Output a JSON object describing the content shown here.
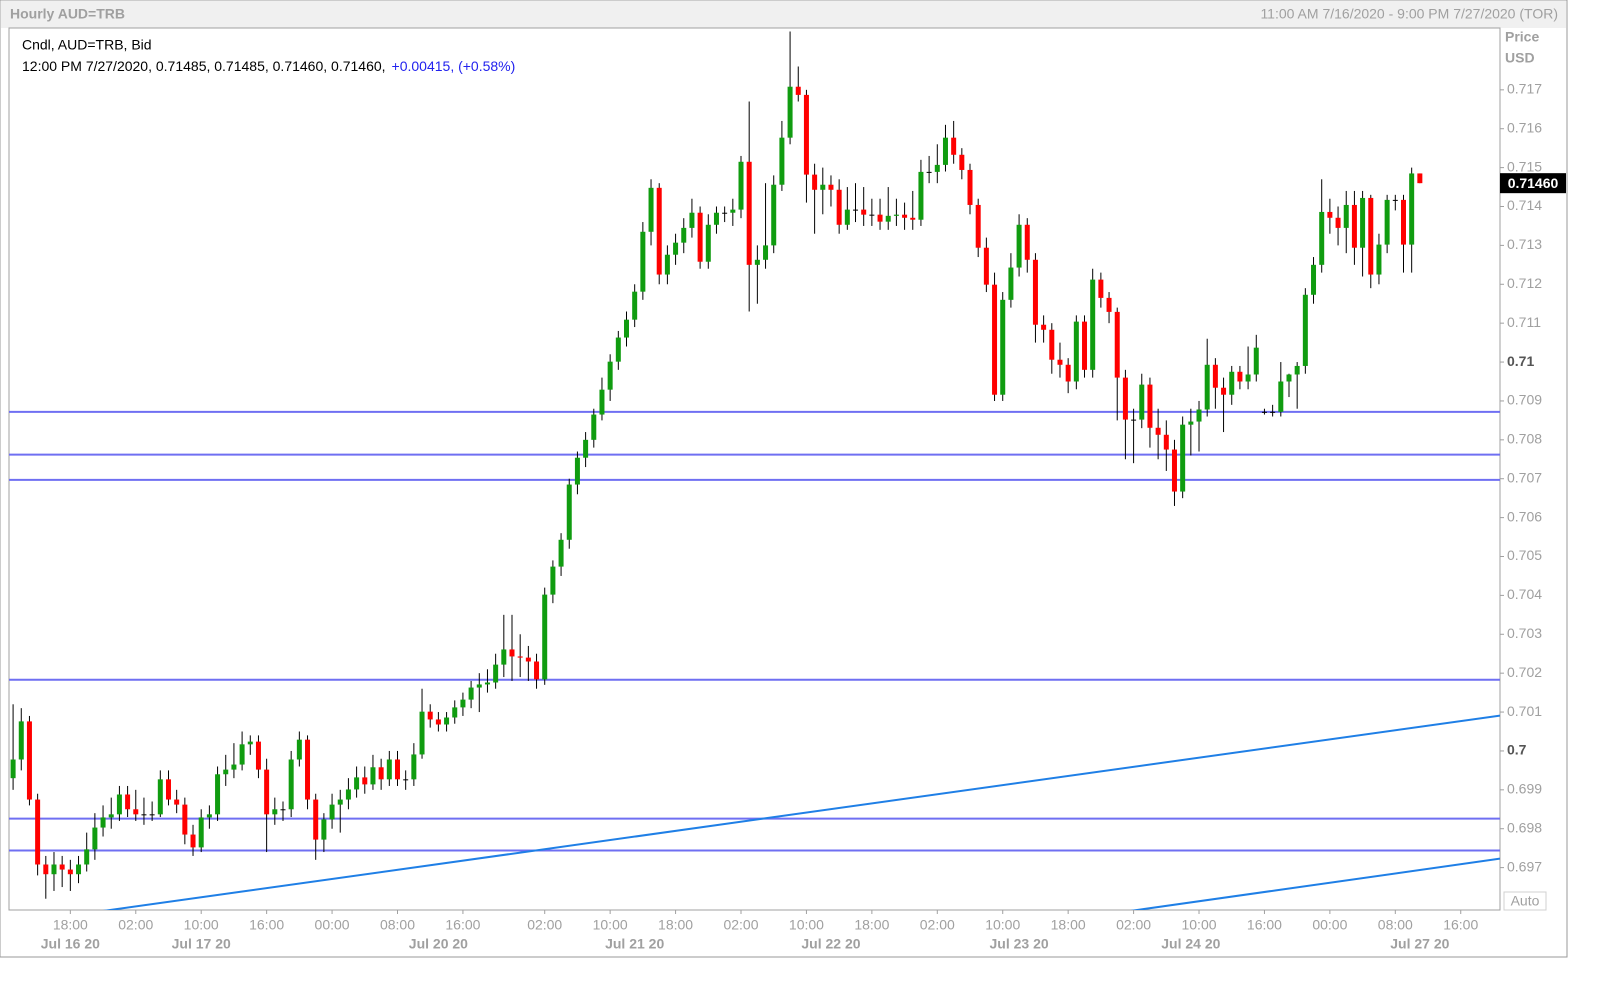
{
  "chart_data": {
    "type": "candlestick",
    "title": "Hourly AUD=TRB",
    "range_text": "11:00 AM 7/16/2020 - 9:00 PM 7/27/2020 (TOR)",
    "legend_text": "Cndl, AUD=TRB, Bid",
    "info_text": "12:00 PM 7/27/2020, 0.71485, 0.71485, 0.71460, 0.71460,",
    "change_text": "+0.00415, (+0.58%)",
    "axis_label": "Price",
    "axis_unit": "USD",
    "auto_label": "Auto",
    "last_price": 0.7146,
    "last_price_label": "0.71460",
    "up_color": "#109c10",
    "down_color": "#ff0000",
    "hline_color": "#6f6ff2",
    "trend_color": "#1f7fe6",
    "xlim": [
      -0.5,
      181.8
    ],
    "ylim": [
      0.69591,
      0.71859
    ],
    "yticks": [
      0.697,
      0.698,
      0.699,
      0.7,
      0.701,
      0.702,
      0.703,
      0.704,
      0.705,
      0.706,
      0.707,
      0.708,
      0.709,
      0.71,
      0.711,
      0.712,
      0.713,
      0.714,
      0.715,
      0.716,
      0.717
    ],
    "xticks": [
      {
        "value": 7,
        "label": "18:00"
      },
      {
        "value": 15,
        "label": "02:00"
      },
      {
        "value": 23,
        "label": "10:00"
      },
      {
        "value": 31,
        "label": "16:00"
      },
      {
        "value": 39,
        "label": "00:00"
      },
      {
        "value": 47,
        "label": "08:00"
      },
      {
        "value": 55,
        "label": "16:00"
      },
      {
        "value": 65,
        "label": "02:00"
      },
      {
        "value": 73,
        "label": "10:00"
      },
      {
        "value": 81,
        "label": "18:00"
      },
      {
        "value": 89,
        "label": "02:00"
      },
      {
        "value": 97,
        "label": "10:00"
      },
      {
        "value": 105,
        "label": "18:00"
      },
      {
        "value": 113,
        "label": "02:00"
      },
      {
        "value": 121,
        "label": "10:00"
      },
      {
        "value": 129,
        "label": "18:00"
      },
      {
        "value": 137,
        "label": "02:00"
      },
      {
        "value": 145,
        "label": "10:00"
      },
      {
        "value": 153,
        "label": "16:00"
      },
      {
        "value": 161,
        "label": "00:00"
      },
      {
        "value": 169,
        "label": "08:00"
      },
      {
        "value": 177,
        "label": "16:00"
      }
    ],
    "date_ticks": [
      {
        "value": 7,
        "label": "Jul 16 20"
      },
      {
        "value": 23,
        "label": "Jul 17 20"
      },
      {
        "value": 52,
        "label": "Jul 20 20"
      },
      {
        "value": 76,
        "label": "Jul 21 20"
      },
      {
        "value": 100,
        "label": "Jul 22 20"
      },
      {
        "value": 123,
        "label": "Jul 23 20"
      },
      {
        "value": 144,
        "label": "Jul 24 20"
      },
      {
        "value": 172,
        "label": "Jul 27 20"
      }
    ],
    "hlines": [
      0.70872,
      0.70762,
      0.70697,
      0.70183,
      0.69826,
      0.69744
    ],
    "trendlines": [
      {
        "x": [
          10.5,
          181.8
        ],
        "y": [
          0.69587,
          0.70091
        ]
      },
      {
        "x": [
          136.1,
          181.8
        ],
        "y": [
          0.69587,
          0.69723
        ]
      }
    ],
    "open": [
      0.6993,
      0.69978,
      0.70076,
      0.69875,
      0.69708,
      0.69683,
      0.69708,
      0.69695,
      0.69683,
      0.69708,
      0.69747,
      0.69803,
      0.69829,
      0.69837,
      0.69888,
      0.6985,
      0.69837,
      0.69837,
      0.69837,
      0.69927,
      0.69875,
      0.69862,
      0.69785,
      0.69752,
      0.69829,
      0.69837,
      0.6994,
      0.69952,
      0.69965,
      0.70017,
      0.70024,
      0.69952,
      0.69837,
      0.6985,
      0.6985,
      0.69978,
      0.70029,
      0.69875,
      0.69772,
      0.69824,
      0.69862,
      0.69875,
      0.69901,
      0.69932,
      0.69914,
      0.69958,
      0.69927,
      0.69978,
      0.69927,
      0.69927,
      0.69991,
      0.70101,
      0.70081,
      0.70068,
      0.70086,
      0.70112,
      0.70132,
      0.70163,
      0.70171,
      0.70176,
      0.70222,
      0.70261,
      0.70243,
      0.7024,
      0.7023,
      0.70184,
      0.70402,
      0.70474,
      0.70543,
      0.70685,
      0.70754,
      0.708,
      0.70865,
      0.70929,
      0.71001,
      0.71063,
      0.71109,
      0.71181,
      0.71335,
      0.71448,
      0.71225,
      0.71276,
      0.71307,
      0.71345,
      0.71384,
      0.71258,
      0.71353,
      0.71384,
      0.71384,
      0.71392,
      0.71515,
      0.7125,
      0.71263,
      0.713,
      0.71456,
      0.71577,
      0.71708,
      0.71687,
      0.71482,
      0.71443,
      0.71456,
      0.71443,
      0.71353,
      0.71392,
      0.71392,
      0.71379,
      0.71379,
      0.71361,
      0.71376,
      0.71379,
      0.71371,
      0.71366,
      0.71489,
      0.71489,
      0.71507,
      0.71577,
      0.71533,
      0.71494,
      0.71404,
      0.71294,
      0.71199,
      0.70916,
      0.7116,
      0.71243,
      0.71353,
      0.71263,
      0.71096,
      0.71083,
      0.71006,
      0.70993,
      0.7095,
      0.71104,
      0.7098,
      0.71212,
      0.71165,
      0.71129,
      0.7096,
      0.70852,
      0.70852,
      0.70942,
      0.70831,
      0.70813,
      0.70775,
      0.70667,
      0.70839,
      0.70847,
      0.70878,
      0.70993,
      0.70934,
      0.70916,
      0.70975,
      0.7095,
      0.70968,
      0.70872,
      0.70872,
      0.70872,
      0.7095,
      0.70968,
      0.7099,
      0.71173,
      0.7125,
      0.71386,
      0.71371,
      0.71345,
      0.71404,
      0.71294,
      0.71422,
      0.71225,
      0.71302,
      0.71417,
      0.71417,
      0.71302,
      0.71485
    ],
    "high": [
      0.7012,
      0.7011,
      0.7009,
      0.6989,
      0.6973,
      0.6974,
      0.6973,
      0.6972,
      0.6973,
      0.6979,
      0.6984,
      0.6986,
      0.6988,
      0.6991,
      0.6991,
      0.699,
      0.6988,
      0.6987,
      0.6995,
      0.6995,
      0.699,
      0.6988,
      0.6981,
      0.6985,
      0.6986,
      0.6996,
      0.6999,
      0.7002,
      0.7005,
      0.7004,
      0.7004,
      0.6998,
      0.6988,
      0.6987,
      0.7,
      0.7005,
      0.7004,
      0.6989,
      0.6984,
      0.6989,
      0.699,
      0.6993,
      0.6996,
      0.6996,
      0.6999,
      0.6998,
      0.7,
      0.7,
      0.6995,
      0.7002,
      0.7016,
      0.7012,
      0.701,
      0.701,
      0.7013,
      0.7015,
      0.7018,
      0.702,
      0.7021,
      0.7025,
      0.7035,
      0.7035,
      0.703,
      0.7027,
      0.7025,
      0.7042,
      0.7049,
      0.7056,
      0.707,
      0.7077,
      0.7082,
      0.7088,
      0.7096,
      0.7102,
      0.7108,
      0.7113,
      0.712,
      0.7136,
      0.7147,
      0.7146,
      0.713,
      0.7133,
      0.7137,
      0.7142,
      0.714,
      0.7138,
      0.714,
      0.714,
      0.7142,
      0.7153,
      0.7167,
      0.713,
      0.7146,
      0.7148,
      0.7162,
      0.7185,
      0.7176,
      0.717,
      0.7151,
      0.715,
      0.7148,
      0.7147,
      0.7145,
      0.7146,
      0.7145,
      0.7142,
      0.7142,
      0.7145,
      0.7142,
      0.7141,
      0.7144,
      0.7152,
      0.7153,
      0.7156,
      0.7161,
      0.7162,
      0.7155,
      0.7151,
      0.7142,
      0.7132,
      0.7123,
      0.7118,
      0.7128,
      0.7138,
      0.7137,
      0.7128,
      0.7112,
      0.711,
      0.7105,
      0.7101,
      0.7112,
      0.7112,
      0.7124,
      0.7123,
      0.7118,
      0.7114,
      0.7098,
      0.7088,
      0.7097,
      0.7096,
      0.7088,
      0.7085,
      0.708,
      0.7086,
      0.7088,
      0.709,
      0.7106,
      0.7101,
      0.7096,
      0.7099,
      0.7099,
      0.7104,
      0.7107,
      0.7088,
      0.7089,
      0.71,
      0.7097,
      0.71,
      0.7119,
      0.7127,
      0.7147,
      0.7142,
      0.714,
      0.7144,
      0.7144,
      0.7144,
      0.7143,
      0.7133,
      0.7143,
      0.7143,
      0.7143,
      0.715,
      0.71485
    ],
    "low": [
      0.699,
      0.6995,
      0.6986,
      0.6968,
      0.6962,
      0.6964,
      0.6965,
      0.6964,
      0.6966,
      0.6969,
      0.6972,
      0.6978,
      0.698,
      0.6982,
      0.6983,
      0.6982,
      0.6981,
      0.6982,
      0.6983,
      0.6986,
      0.6984,
      0.6976,
      0.6973,
      0.6974,
      0.698,
      0.6982,
      0.6991,
      0.6993,
      0.6995,
      0.6999,
      0.6993,
      0.6974,
      0.6981,
      0.6982,
      0.6983,
      0.6996,
      0.6985,
      0.6972,
      0.6974,
      0.698,
      0.6979,
      0.6985,
      0.6988,
      0.6989,
      0.699,
      0.699,
      0.6991,
      0.6991,
      0.699,
      0.6991,
      0.6998,
      0.7006,
      0.7005,
      0.7005,
      0.7007,
      0.7009,
      0.7011,
      0.701,
      0.7015,
      0.7016,
      0.7019,
      0.7018,
      0.7019,
      0.7018,
      0.7016,
      0.7017,
      0.7038,
      0.7045,
      0.7052,
      0.7066,
      0.7073,
      0.7078,
      0.7085,
      0.709,
      0.7098,
      0.7104,
      0.7109,
      0.7116,
      0.713,
      0.712,
      0.712,
      0.7125,
      0.7128,
      0.7132,
      0.7124,
      0.7124,
      0.7133,
      0.7136,
      0.7135,
      0.7137,
      0.7113,
      0.7115,
      0.7124,
      0.7128,
      0.7144,
      0.7156,
      0.7167,
      0.7141,
      0.7133,
      0.7138,
      0.714,
      0.7133,
      0.7134,
      0.7136,
      0.7135,
      0.7135,
      0.7134,
      0.7134,
      0.7135,
      0.7134,
      0.7134,
      0.7135,
      0.7146,
      0.7146,
      0.7149,
      0.7151,
      0.7147,
      0.7138,
      0.7127,
      0.7118,
      0.709,
      0.709,
      0.7114,
      0.7122,
      0.7123,
      0.7105,
      0.7105,
      0.7097,
      0.7096,
      0.7092,
      0.7093,
      0.7096,
      0.7096,
      0.7114,
      0.711,
      0.7085,
      0.7075,
      0.7074,
      0.7083,
      0.7078,
      0.7075,
      0.7072,
      0.7063,
      0.7065,
      0.7076,
      0.7077,
      0.7086,
      0.7088,
      0.7082,
      0.7089,
      0.7093,
      0.7093,
      0.7095,
      0.70865,
      0.7086,
      0.7086,
      0.7091,
      0.7088,
      0.7097,
      0.7115,
      0.7123,
      0.7133,
      0.713,
      0.7128,
      0.7125,
      0.7122,
      0.7119,
      0.712,
      0.7128,
      0.7139,
      0.7123,
      0.7123,
      0.7146
    ],
    "close": [
      0.69978,
      0.70076,
      0.69875,
      0.69708,
      0.69683,
      0.69708,
      0.69695,
      0.69683,
      0.69708,
      0.69747,
      0.69803,
      0.69829,
      0.69837,
      0.69888,
      0.6985,
      0.69837,
      0.69837,
      0.69837,
      0.69927,
      0.69875,
      0.69862,
      0.69785,
      0.69752,
      0.69829,
      0.69837,
      0.6994,
      0.69952,
      0.69965,
      0.70017,
      0.70024,
      0.69952,
      0.69837,
      0.6985,
      0.6985,
      0.69978,
      0.70029,
      0.69875,
      0.69772,
      0.69824,
      0.69862,
      0.69875,
      0.69901,
      0.69932,
      0.69914,
      0.69958,
      0.69927,
      0.69978,
      0.69927,
      0.69927,
      0.69991,
      0.70101,
      0.70081,
      0.70068,
      0.70086,
      0.70112,
      0.70132,
      0.70163,
      0.70171,
      0.70176,
      0.70222,
      0.70261,
      0.70243,
      0.7024,
      0.7023,
      0.70184,
      0.70402,
      0.70474,
      0.70543,
      0.70685,
      0.70754,
      0.708,
      0.70865,
      0.70929,
      0.71001,
      0.71063,
      0.71109,
      0.71181,
      0.71335,
      0.71448,
      0.71225,
      0.71276,
      0.71307,
      0.71345,
      0.71384,
      0.71258,
      0.71353,
      0.71384,
      0.71384,
      0.71392,
      0.71515,
      0.7125,
      0.71263,
      0.713,
      0.71456,
      0.71577,
      0.71708,
      0.71687,
      0.71482,
      0.71443,
      0.71456,
      0.71443,
      0.71353,
      0.71392,
      0.71392,
      0.71379,
      0.71379,
      0.71361,
      0.71376,
      0.71379,
      0.71371,
      0.71366,
      0.71489,
      0.71489,
      0.71507,
      0.71577,
      0.71533,
      0.71494,
      0.71404,
      0.71294,
      0.71199,
      0.70916,
      0.7116,
      0.71243,
      0.71353,
      0.71263,
      0.71096,
      0.71083,
      0.71006,
      0.70993,
      0.7095,
      0.71104,
      0.7098,
      0.71212,
      0.71165,
      0.71129,
      0.7096,
      0.70852,
      0.70852,
      0.70942,
      0.70831,
      0.70813,
      0.70775,
      0.70667,
      0.70839,
      0.70847,
      0.70878,
      0.70993,
      0.70934,
      0.70916,
      0.70975,
      0.7095,
      0.70968,
      0.71037,
      0.70872,
      0.70872,
      0.7095,
      0.70968,
      0.7099,
      0.71173,
      0.7125,
      0.71386,
      0.71371,
      0.71345,
      0.71404,
      0.71294,
      0.71422,
      0.71225,
      0.71302,
      0.71417,
      0.71417,
      0.71302,
      0.71485,
      0.7146
    ]
  }
}
